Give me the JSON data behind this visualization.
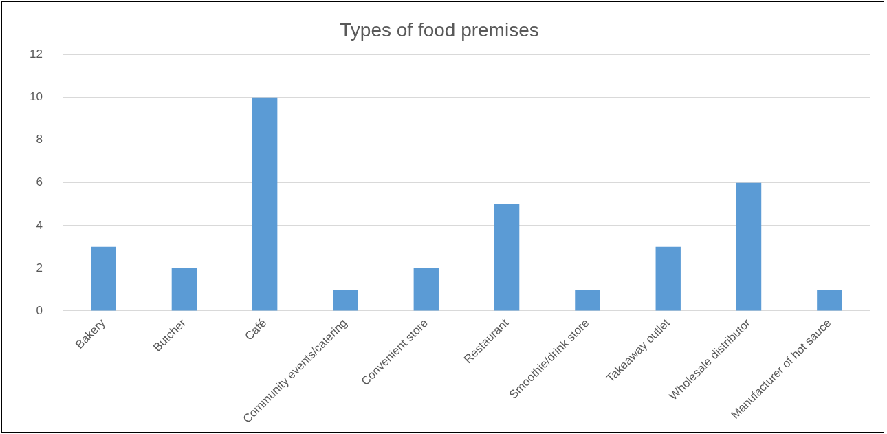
{
  "chart_data": {
    "type": "bar",
    "title": "Types of food premises",
    "categories": [
      "Bakery",
      "Butcher",
      "Café",
      "Community events/catering",
      "Convenient store",
      "Restaurant",
      "Smoothie/drink store",
      "Takeaway outlet",
      "Wholesale distributor",
      "Manufacturer of hot sauce"
    ],
    "values": [
      3,
      2,
      10,
      1,
      2,
      5,
      1,
      3,
      6,
      1
    ],
    "color": "#5b9bd5",
    "ylim": [
      0,
      12
    ],
    "yticks": [
      0,
      2,
      4,
      6,
      8,
      10,
      12
    ],
    "grid": "y",
    "legend": false
  }
}
